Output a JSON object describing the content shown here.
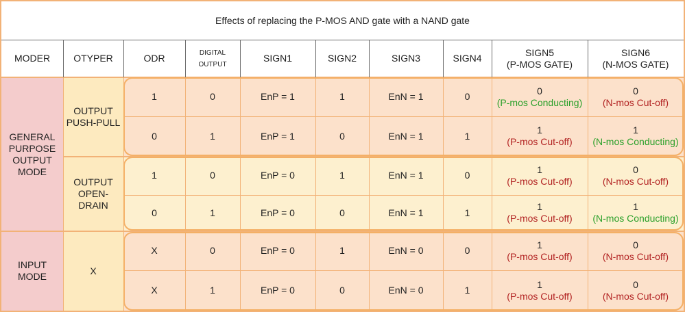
{
  "title": "Effects of replacing the P-MOS AND gate with a NAND gate",
  "headers": {
    "moder": "MODER",
    "otyper": "OTYPER",
    "odr": "ODR",
    "digital_output_1": "DIGITAL",
    "digital_output_2": "OUTPUT",
    "sign1": "SIGN1",
    "sign2": "SIGN2",
    "sign3": "SIGN3",
    "sign4": "SIGN4",
    "sign5_1": "SIGN5",
    "sign5_2": "(P-MOS GATE)",
    "sign6_1": "SIGN6",
    "sign6_2": "(N-MOS GATE)"
  },
  "groups": {
    "gpo_1": "GENERAL",
    "gpo_2": "PURPOSE",
    "gpo_3": "OUTPUT",
    "gpo_4": "MODE",
    "pp_1": "OUTPUT",
    "pp_2": "PUSH-PULL",
    "od_1": "OUTPUT",
    "od_2": "OPEN-",
    "od_3": "DRAIN",
    "input_1": "INPUT",
    "input_2": "MODE",
    "x": "X"
  },
  "rows": [
    {
      "odr": "1",
      "dout": "0",
      "sign1": "EnP = 1",
      "sign2": "1",
      "sign3": "EnN = 1",
      "sign4": "0",
      "sign5": "0",
      "sign5_note": "(P-mos Conducting)",
      "sign6": "0",
      "sign6_note": "(N-mos Cut-off)"
    },
    {
      "odr": "0",
      "dout": "1",
      "sign1": "EnP = 1",
      "sign2": "0",
      "sign3": "EnN = 1",
      "sign4": "1",
      "sign5": "1",
      "sign5_note": "(P-mos Cut-off)",
      "sign6": "1",
      "sign6_note": "(N-mos Conducting)"
    },
    {
      "odr": "1",
      "dout": "0",
      "sign1": "EnP = 0",
      "sign2": "1",
      "sign3": "EnN = 1",
      "sign4": "0",
      "sign5": "1",
      "sign5_note": "(P-mos Cut-off)",
      "sign6": "0",
      "sign6_note": "(N-mos Cut-off)"
    },
    {
      "odr": "0",
      "dout": "1",
      "sign1": "EnP = 0",
      "sign2": "0",
      "sign3": "EnN = 1",
      "sign4": "1",
      "sign5": "1",
      "sign5_note": "(P-mos Cut-off)",
      "sign6": "1",
      "sign6_note": "(N-mos Conducting)"
    },
    {
      "odr": "X",
      "dout": "0",
      "sign1": "EnP = 0",
      "sign2": "1",
      "sign3": "EnN = 0",
      "sign4": "0",
      "sign5": "1",
      "sign5_note": "(P-mos Cut-off)",
      "sign6": "0",
      "sign6_note": "(N-mos Cut-off)"
    },
    {
      "odr": "X",
      "dout": "1",
      "sign1": "EnP = 0",
      "sign2": "0",
      "sign3": "EnN = 0",
      "sign4": "1",
      "sign5": "1",
      "sign5_note": "(P-mos Cut-off)",
      "sign6": "0",
      "sign6_note": "(N-mos Cut-off)"
    }
  ],
  "colors": {
    "frame_orange": "#f2b277",
    "moder_fill": "#f4cccc",
    "otyper_fill": "#fdeabf",
    "pp_row_fill": "#fce1cb",
    "od_row_fill": "#fdf0cf",
    "input_row_fill": "#fce1cb",
    "conducting": "#2aa02a",
    "cutoff": "#b22222"
  }
}
